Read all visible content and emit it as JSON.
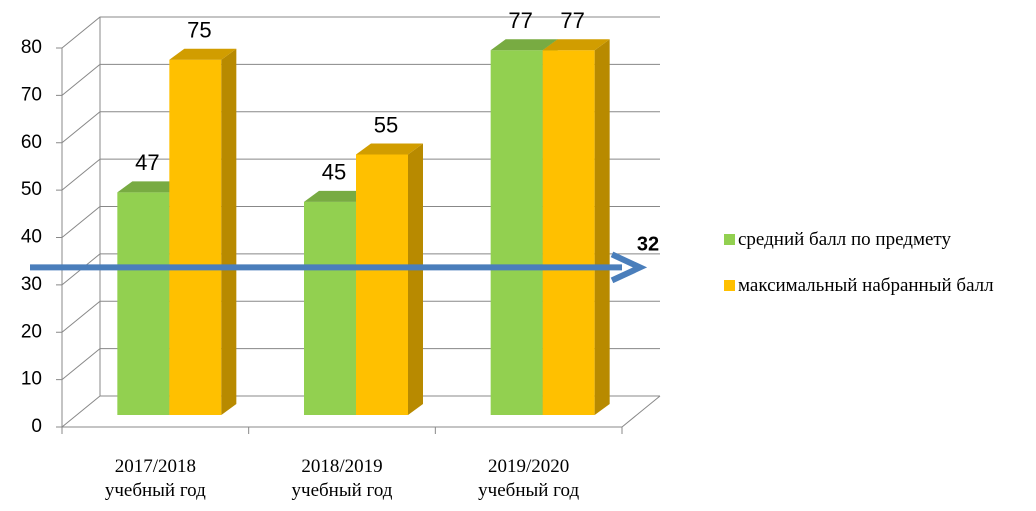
{
  "chart_data": {
    "type": "bar3d",
    "categories": [
      "2017/2018 учебный год",
      "2018/2019 учебный год",
      "2019/2020 учебный год"
    ],
    "series": [
      {
        "name": "средний балл по предмету",
        "color": "#92d050",
        "values": [
          47,
          45,
          77
        ]
      },
      {
        "name": "максимальный набранный балл",
        "color": "#ffc000",
        "values": [
          75,
          55,
          77
        ]
      }
    ],
    "ylim": [
      0,
      80
    ],
    "yticks": [
      0,
      10,
      20,
      30,
      40,
      50,
      60,
      70,
      80
    ],
    "grid": true,
    "reference_line": 32,
    "reference_color": "#4a7ebb",
    "legend": "right"
  }
}
